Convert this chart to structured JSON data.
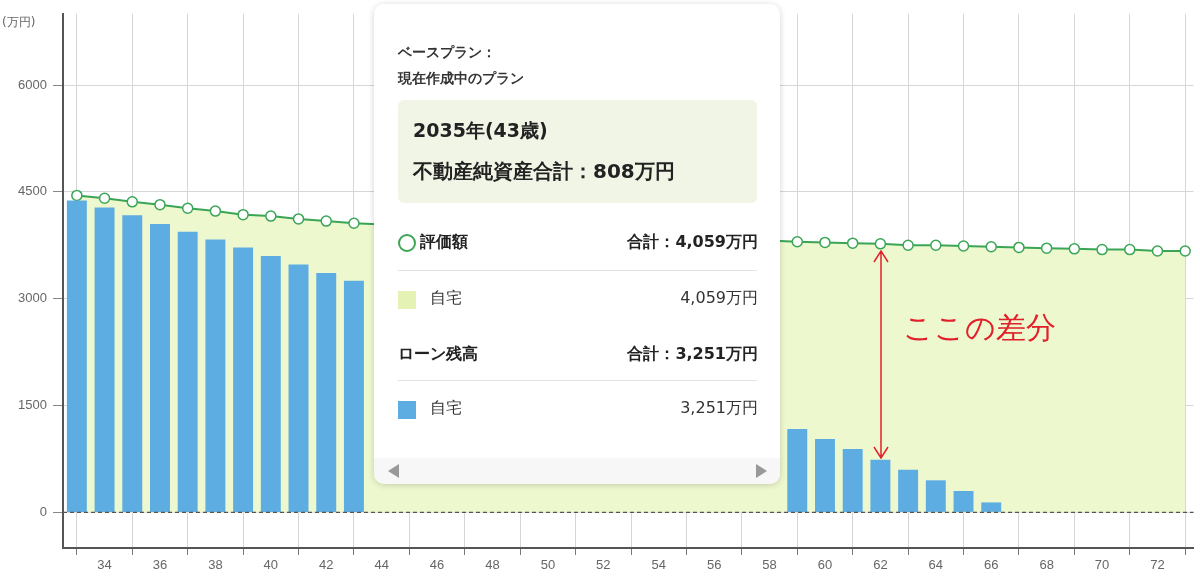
{
  "chart_data": {
    "type": "bar",
    "ylabel": "(万円)",
    "x": [
      33,
      34,
      35,
      36,
      37,
      38,
      39,
      40,
      41,
      42,
      43,
      44,
      45,
      46,
      47,
      48,
      49,
      50,
      51,
      52,
      53,
      54,
      55,
      56,
      57,
      58,
      59,
      60,
      61,
      62,
      63,
      64,
      65,
      66,
      67,
      68,
      69,
      70,
      71,
      72,
      73
    ],
    "xlim": [
      32.5,
      73.3
    ],
    "xticks": [
      34,
      36,
      38,
      40,
      42,
      44,
      46,
      48,
      50,
      52,
      54,
      56,
      58,
      60,
      62,
      64,
      66,
      68,
      70,
      72
    ],
    "ylim": [
      -500,
      7000
    ],
    "yticks": [
      0,
      1500,
      3000,
      4500,
      6000
    ],
    "grid": true,
    "marker": "circle",
    "series": [
      {
        "type": "area",
        "color": "#3aa655",
        "values": [
          4450,
          4410,
          4360,
          4320,
          4270,
          4230,
          4180,
          4160,
          4120,
          4090,
          4059,
          null,
          null,
          null,
          null,
          null,
          null,
          null,
          null,
          null,
          null,
          null,
          null,
          null,
          null,
          null,
          3800,
          3790,
          3780,
          3770,
          3750,
          3750,
          3740,
          3730,
          3720,
          3710,
          3700,
          3690,
          3690,
          3670,
          3670
        ]
      },
      {
        "color": "#5dade2",
        "x": [
          33,
          34,
          35,
          36,
          37,
          38,
          39,
          40,
          41,
          42,
          43,
          44,
          45,
          46,
          47,
          48,
          49,
          50,
          51,
          52,
          53,
          54,
          55,
          56,
          57,
          58,
          59,
          60,
          61,
          62,
          63,
          64,
          65,
          66
        ],
        "values": [
          4380,
          4280,
          4170,
          4050,
          3940,
          3830,
          3720,
          3600,
          3480,
          3360,
          3251,
          null,
          null,
          null,
          null,
          null,
          null,
          null,
          null,
          null,
          null,
          null,
          null,
          null,
          null,
          null,
          1170,
          1030,
          890,
          740,
          600,
          450,
          300,
          140
        ]
      }
    ],
    "ref_lines": [
      {
        "axis": "y",
        "value": 0,
        "line_style": "dashed",
        "color": "#555555"
      }
    ],
    "annotations": [
      "ベースプラン：",
      "現在作成中のプラン",
      "2035年(43歳)",
      "不動産純資産合計：808万円",
      "評価額",
      "合計：4,059万円",
      "自宅",
      "4,059万円",
      "ローン残高",
      "合計：3,251万円",
      "自宅",
      "3,251万円",
      "ここの差分"
    ]
  }
}
